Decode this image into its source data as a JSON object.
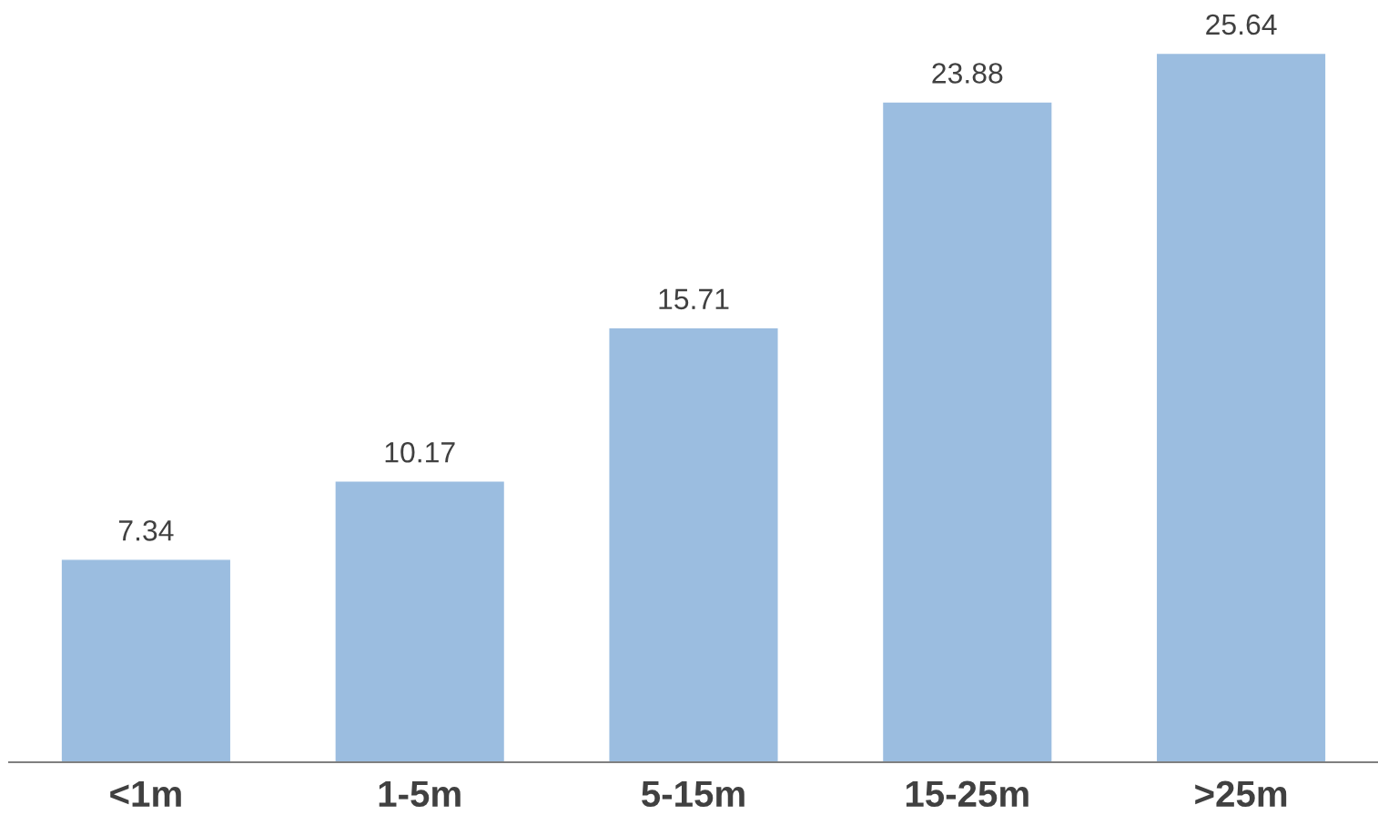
{
  "chart_data": {
    "type": "bar",
    "categories": [
      "<1m",
      "1-5m",
      "5-15m",
      "15-25m",
      ">25m"
    ],
    "values": [
      7.34,
      10.17,
      15.71,
      23.88,
      25.64
    ],
    "color": "#9bbde0",
    "data_labels": true,
    "grid": false,
    "legend": false
  }
}
